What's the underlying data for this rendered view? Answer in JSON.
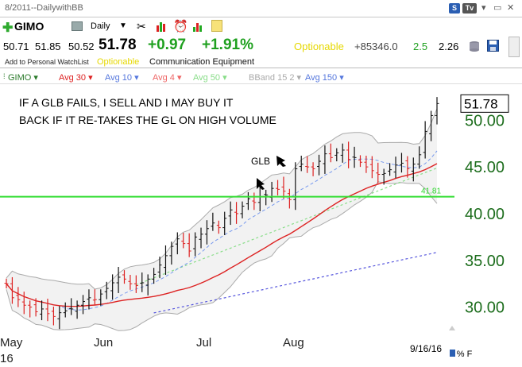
{
  "window": {
    "title": "8/2011--DailywithBB",
    "buttons": [
      "S",
      "Tv"
    ]
  },
  "toolbar": {
    "symbol": "GIMO",
    "period": "Daily"
  },
  "quote": {
    "open": "50.71",
    "high": "51.85",
    "low": "50.52",
    "last": "51.78",
    "change": "+0.97",
    "pct_change": "+1.91%",
    "optionable": "Optionable",
    "volume_change": "+85346.0",
    "ratio": "2.5",
    "other": "2.26"
  },
  "info": {
    "watchlist": "Add to Personal WatchList",
    "optionable": "Optionable",
    "industry": "Communication Equipment"
  },
  "legend": [
    {
      "label": "GIMO",
      "color": "#2a7a2a"
    },
    {
      "label": "Avg 30",
      "color": "#dd2222"
    },
    {
      "label": "Avg 10",
      "color": "#5577dd"
    },
    {
      "label": "Avg 4",
      "color": "#ee6666"
    },
    {
      "label": "Avg 50",
      "color": "#88dd88"
    },
    {
      "label": "BBand 15 2",
      "color": "#aaaaaa"
    },
    {
      "label": "Avg 150",
      "color": "#5577dd"
    }
  ],
  "annotations": {
    "line1": "IF A GLB FAILS, I SELL AND I MAY BUY IT",
    "line2": "BACK IF IT RE-TAKES THE GL ON HIGH VOLUME",
    "glb": "GLB",
    "gl_value": "41.81",
    "last_label": "51.78",
    "date": "9/16/16",
    "corner": "L % F"
  },
  "colors": {
    "green_line": "#33dd33",
    "price_up": "#111111",
    "price_down": "#dd2222",
    "bband": "#aaaaaa",
    "avg30": "#dd2222",
    "avg10": "#7799ee",
    "avg50": "#88dd88",
    "avg150": "#5555dd"
  },
  "chart_data": {
    "type": "line",
    "y_ticks": [
      "30.00",
      "35.00",
      "40.00",
      "45.00",
      "50.00"
    ],
    "x_labels": [
      "May",
      "Jun",
      "Jul",
      "Aug"
    ],
    "x_year": "16",
    "ylim": [
      27.5,
      53
    ],
    "gl_level": 41.81,
    "last_price": 51.78,
    "series": [
      {
        "values": [
          32.5,
          31.0,
          30.8,
          30.2,
          30.0,
          29.5,
          29.8,
          29.3,
          29.0,
          29.4,
          29.6,
          29.8,
          30.2,
          30.6,
          31.0,
          30.8,
          31.4,
          32.0,
          32.6,
          33.2,
          33.0,
          32.5,
          32.3,
          32.6,
          33.0,
          33.5,
          34.5,
          35.5,
          36.5,
          37.3,
          36.8,
          36.0,
          37.5,
          37.8,
          38.4,
          39.0,
          38.5,
          39.5,
          40.4,
          40.0,
          40.8,
          41.6,
          41.2,
          41.8,
          42.0,
          42.7,
          42.6,
          42.4,
          41.5,
          44.8,
          45.3,
          45.0,
          44.8,
          45.6,
          46.4,
          46.0,
          46.5,
          46.8,
          45.8,
          46.0,
          45.5,
          45.0,
          44.6,
          44.2,
          44.3,
          44.7,
          45.2,
          45.4,
          44.8,
          45.3,
          46.3,
          48.8,
          50.5,
          51.78
        ]
      }
    ]
  }
}
